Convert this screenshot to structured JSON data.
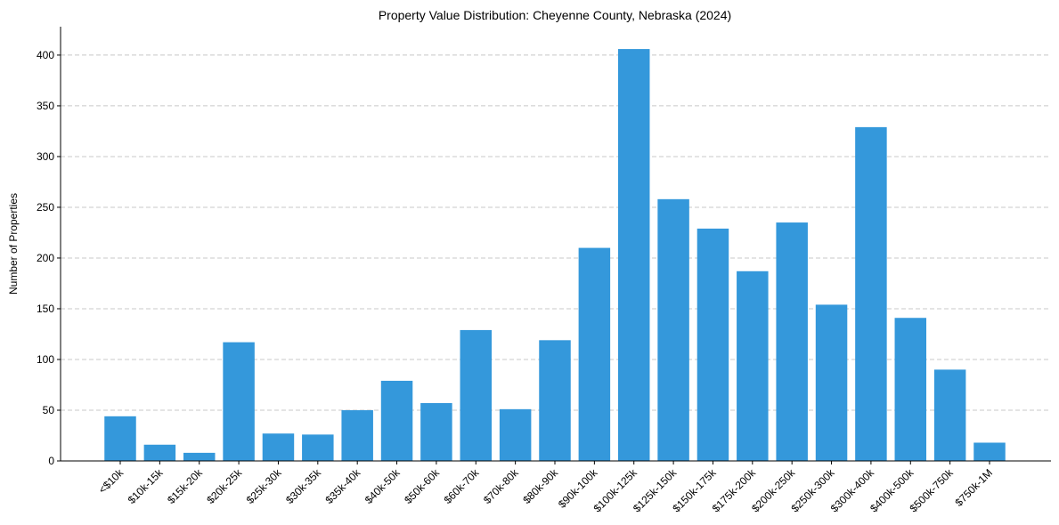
{
  "chart_data": {
    "type": "bar",
    "title": "Property Value Distribution: Cheyenne County, Nebraska (2024)",
    "xlabel": "",
    "ylabel": "Number of Properties",
    "ylim": [
      0,
      428
    ],
    "yticks": [
      0,
      50,
      100,
      150,
      200,
      250,
      300,
      350,
      400
    ],
    "grid": "y-dashed",
    "bar_color": "#3498db",
    "categories": [
      "<$10k",
      "$10k-15k",
      "$15k-20k",
      "$20k-25k",
      "$25k-30k",
      "$30k-35k",
      "$35k-40k",
      "$40k-50k",
      "$50k-60k",
      "$60k-70k",
      "$70k-80k",
      "$80k-90k",
      "$90k-100k",
      "$100k-125k",
      "$125k-150k",
      "$150k-175k",
      "$175k-200k",
      "$200k-250k",
      "$250k-300k",
      "$300k-400k",
      "$400k-500k",
      "$500k-750k",
      "$750k-1M"
    ],
    "values": [
      44,
      16,
      8,
      117,
      27,
      26,
      50,
      79,
      57,
      129,
      51,
      119,
      210,
      406,
      258,
      229,
      187,
      235,
      154,
      329,
      141,
      90,
      18
    ]
  }
}
